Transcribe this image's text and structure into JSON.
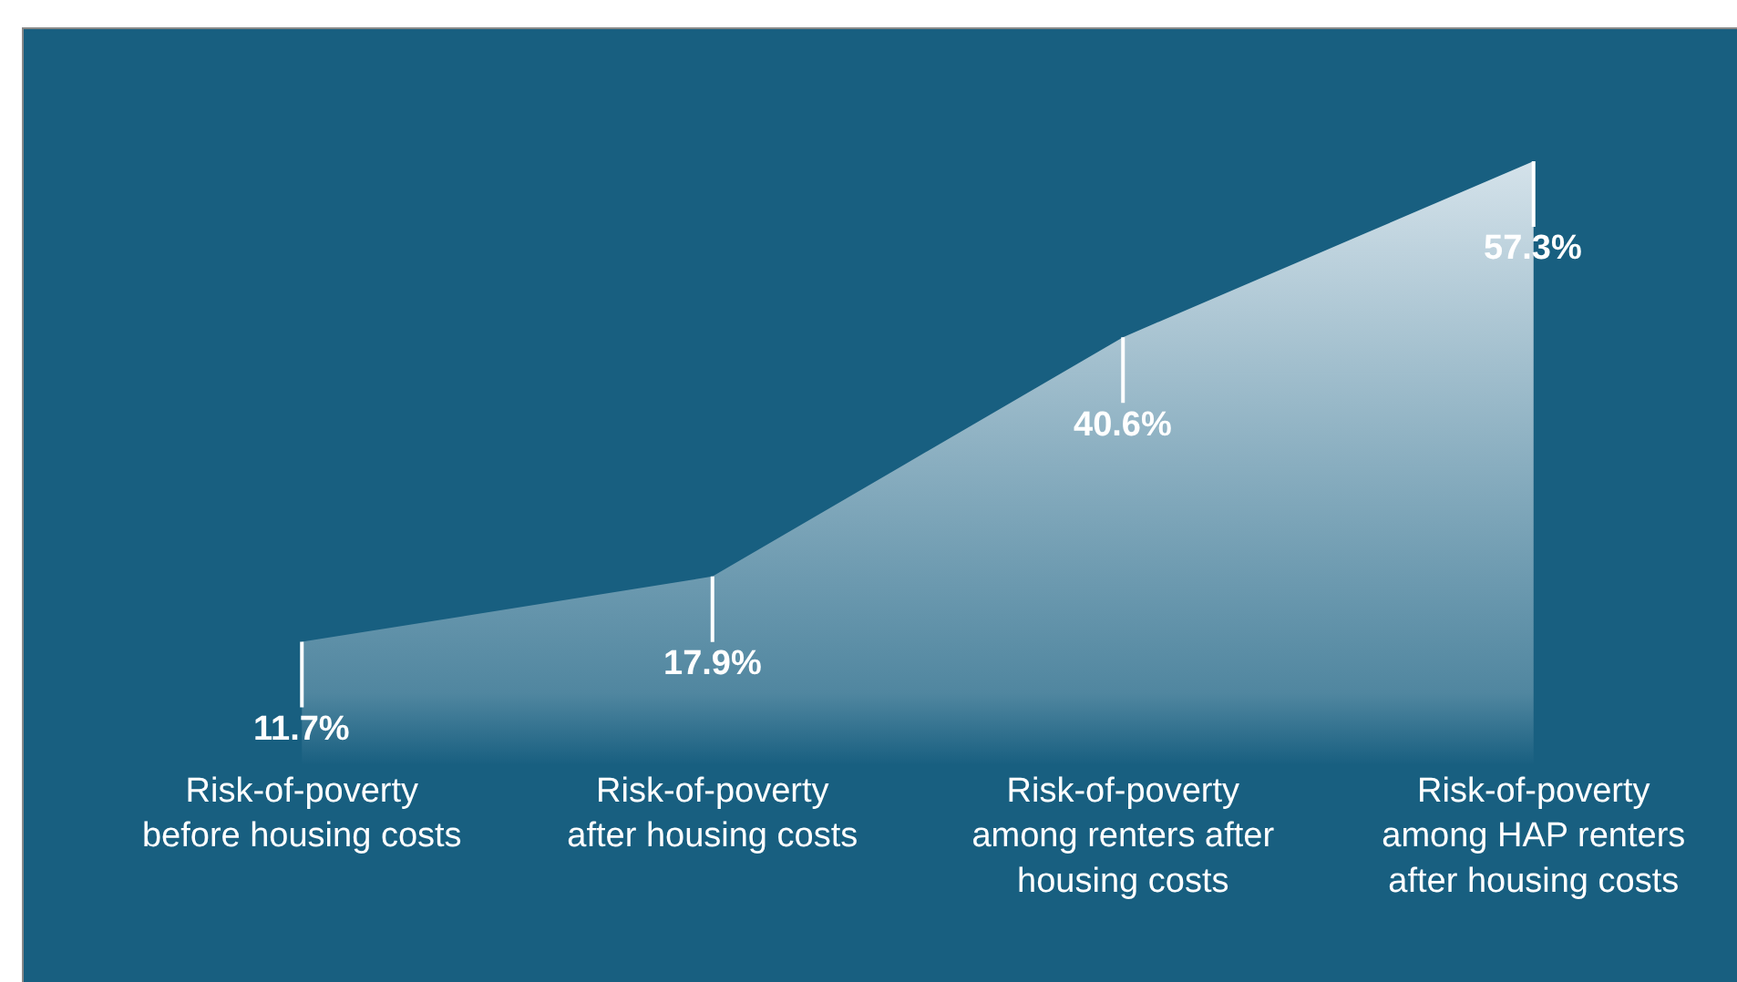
{
  "chart_data": {
    "type": "area",
    "categories": [
      "Risk-of-poverty before housing costs",
      "Risk-of-poverty after housing costs",
      "Risk-of-poverty among renters after housing costs",
      "Risk-of-poverty among HAP renters after housing costs"
    ],
    "values": [
      11.7,
      17.9,
      40.6,
      57.3
    ],
    "value_labels": [
      "11.7%",
      "17.9%",
      "40.6%",
      "57.3%"
    ],
    "color": "#d4e2ea"
  }
}
